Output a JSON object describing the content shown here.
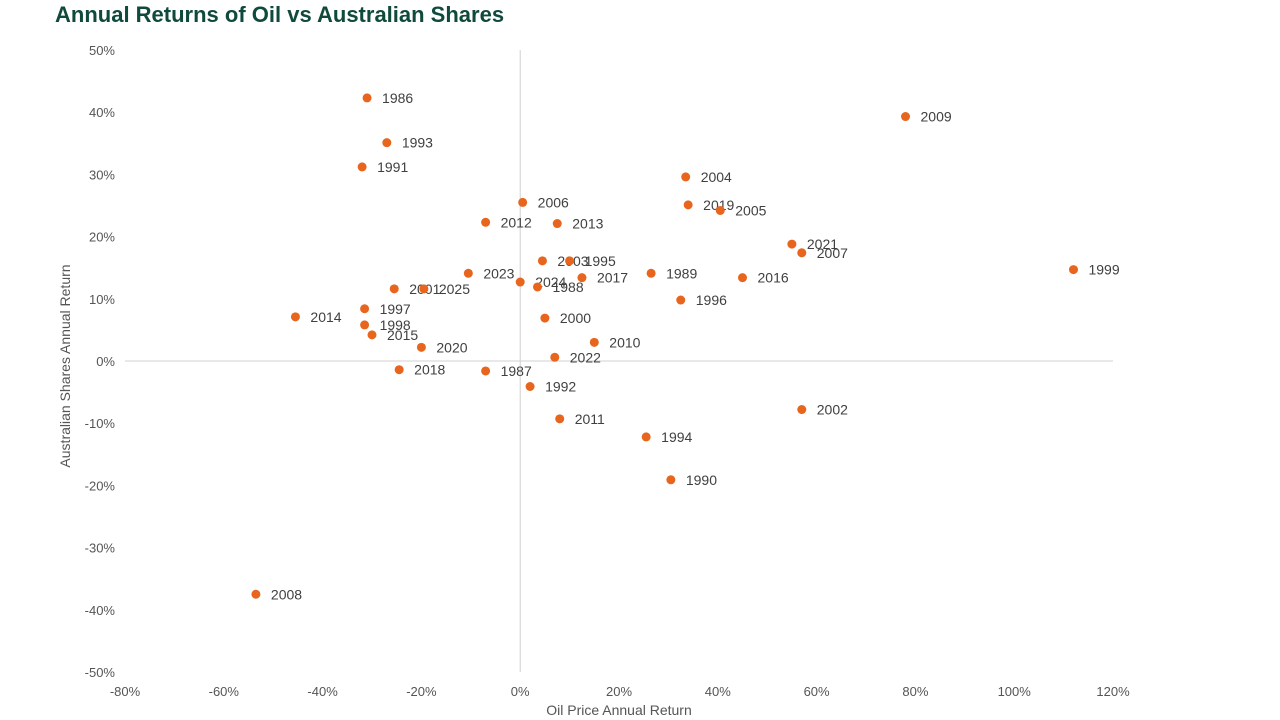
{
  "chart_data": {
    "type": "scatter",
    "title": "Annual Returns of Oil vs Australian Shares",
    "xlabel": "Oil Price Annual Return",
    "ylabel": "Australian Shares Annual Return",
    "xlim": [
      -0.8,
      1.2
    ],
    "ylim": [
      -0.5,
      0.5
    ],
    "x_ticks": [
      -0.8,
      -0.6,
      -0.4,
      -0.2,
      0,
      0.2,
      0.4,
      0.6,
      0.8,
      1.0,
      1.2
    ],
    "x_tick_labels": [
      "-80%",
      "-60%",
      "-40%",
      "-20%",
      "0%",
      "20%",
      "40%",
      "60%",
      "80%",
      "100%",
      "120%"
    ],
    "y_ticks": [
      0.5,
      0.4,
      0.3,
      0.2,
      0.1,
      0,
      -0.1,
      -0.2,
      -0.3,
      -0.4,
      -0.5
    ],
    "y_tick_labels": [
      "50%",
      "40%",
      "30%",
      "20%",
      "10%",
      "0%",
      "-10%",
      "-20%",
      "-30%",
      "-40%",
      "-50%"
    ],
    "grid": false,
    "legend": false,
    "marker_color": "#e8651d",
    "axis_line_color": "#d0d0d0",
    "points": [
      {
        "label": "1986",
        "x": -0.31,
        "y": 0.423
      },
      {
        "label": "1993",
        "x": -0.27,
        "y": 0.351
      },
      {
        "label": "1991",
        "x": -0.32,
        "y": 0.312
      },
      {
        "label": "2009",
        "x": 0.78,
        "y": 0.393
      },
      {
        "label": "2004",
        "x": 0.335,
        "y": 0.296
      },
      {
        "label": "2006",
        "x": 0.005,
        "y": 0.255
      },
      {
        "label": "2019",
        "x": 0.34,
        "y": 0.251
      },
      {
        "label": "2005",
        "x": 0.405,
        "y": 0.242
      },
      {
        "label": "2012",
        "x": -0.07,
        "y": 0.223
      },
      {
        "label": "2013",
        "x": 0.075,
        "y": 0.221
      },
      {
        "label": "2021",
        "x": 0.55,
        "y": 0.188
      },
      {
        "label": "2007",
        "x": 0.57,
        "y": 0.174
      },
      {
        "label": "1999",
        "x": 1.12,
        "y": 0.147
      },
      {
        "label": "2003",
        "x": 0.045,
        "y": 0.161
      },
      {
        "label": "1995",
        "x": 0.1,
        "y": 0.161
      },
      {
        "label": "2023",
        "x": -0.105,
        "y": 0.141
      },
      {
        "label": "1989",
        "x": 0.265,
        "y": 0.141
      },
      {
        "label": "2016",
        "x": 0.45,
        "y": 0.134
      },
      {
        "label": "2017",
        "x": 0.125,
        "y": 0.134
      },
      {
        "label": "2024",
        "x": 0.0,
        "y": 0.127
      },
      {
        "label": "1988",
        "x": 0.035,
        "y": 0.119
      },
      {
        "label": "2001",
        "x": -0.255,
        "y": 0.116
      },
      {
        "label": "2025",
        "x": -0.195,
        "y": 0.116
      },
      {
        "label": "1996",
        "x": 0.325,
        "y": 0.098
      },
      {
        "label": "1997",
        "x": -0.315,
        "y": 0.084
      },
      {
        "label": "2014",
        "x": -0.455,
        "y": 0.071
      },
      {
        "label": "2000",
        "x": 0.05,
        "y": 0.069
      },
      {
        "label": "1998",
        "x": -0.315,
        "y": 0.058
      },
      {
        "label": "2015",
        "x": -0.3,
        "y": 0.042
      },
      {
        "label": "2010",
        "x": 0.15,
        "y": 0.03
      },
      {
        "label": "2020",
        "x": -0.2,
        "y": 0.022
      },
      {
        "label": "2022",
        "x": 0.07,
        "y": 0.006
      },
      {
        "label": "2018",
        "x": -0.245,
        "y": -0.014
      },
      {
        "label": "1987",
        "x": -0.07,
        "y": -0.016
      },
      {
        "label": "1992",
        "x": 0.02,
        "y": -0.041
      },
      {
        "label": "2002",
        "x": 0.57,
        "y": -0.078
      },
      {
        "label": "2011",
        "x": 0.08,
        "y": -0.093
      },
      {
        "label": "1994",
        "x": 0.255,
        "y": -0.122
      },
      {
        "label": "1990",
        "x": 0.305,
        "y": -0.191
      },
      {
        "label": "2008",
        "x": -0.535,
        "y": -0.375
      }
    ]
  }
}
